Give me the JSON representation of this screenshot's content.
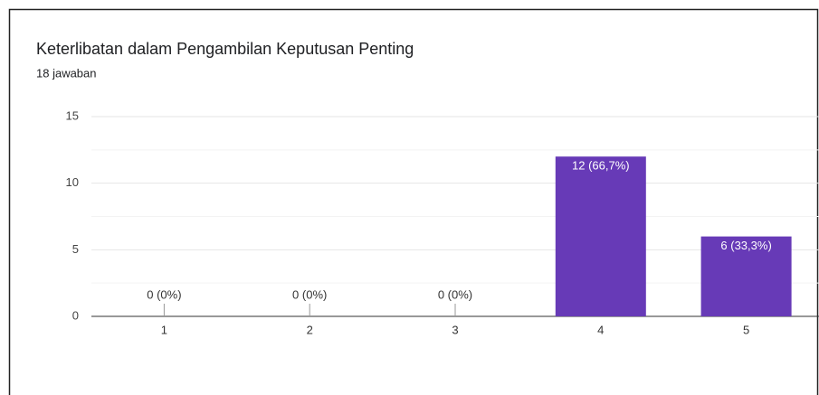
{
  "chart_data": {
    "type": "bar",
    "title": "Keterlibatan dalam Pengambilan Keputusan Penting",
    "subtitle": "18 jawaban",
    "categories": [
      "1",
      "2",
      "3",
      "4",
      "5"
    ],
    "values": [
      0,
      0,
      0,
      12,
      6
    ],
    "value_labels": [
      "0 (0%)",
      "0 (0%)",
      "0 (0%)",
      "12 (66,7%)",
      "6 (33,3%)"
    ],
    "color": "#673ab7",
    "ylim": [
      0,
      15
    ],
    "yticks": [
      0,
      5,
      10,
      15
    ],
    "minor_yticks": [
      2.5,
      7.5,
      12.5
    ],
    "grid": true
  }
}
